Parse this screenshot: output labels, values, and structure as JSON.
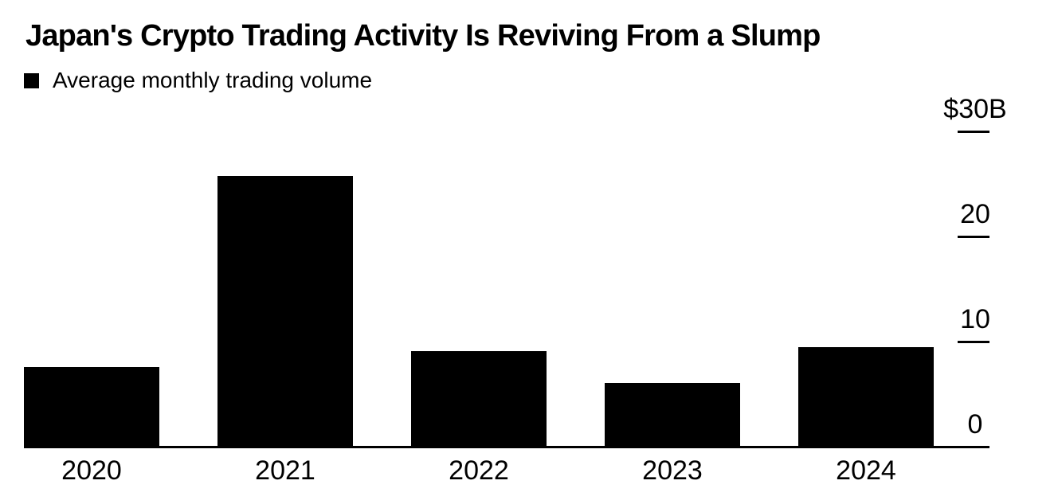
{
  "page": {
    "background_color": "#ffffff",
    "ink_color": "#000000"
  },
  "header": {
    "title": "Japan's Crypto Trading Activity Is Reviving From a Slump",
    "legend": {
      "swatch_color": "#000000",
      "label": "Average monthly trading volume"
    }
  },
  "chart_data": {
    "type": "bar",
    "title": "Japan's Crypto Trading Activity Is Reviving From a Slump",
    "series_name": "Average monthly trading volume",
    "categories": [
      "2020",
      "2021",
      "2022",
      "2023",
      "2024"
    ],
    "values": [
      7.5,
      25.7,
      9.0,
      6.0,
      9.4
    ],
    "unit": "$B (billions of US dollars)",
    "bar_color": "#000000",
    "ylim": [
      0,
      30
    ],
    "yticks": [
      {
        "value": 30,
        "label": "$30B"
      },
      {
        "value": 20,
        "label": "20"
      },
      {
        "value": 10,
        "label": "10"
      },
      {
        "value": 0,
        "label": "0"
      }
    ],
    "axis_side": "right",
    "grid": false,
    "legend_position": "top-left"
  }
}
